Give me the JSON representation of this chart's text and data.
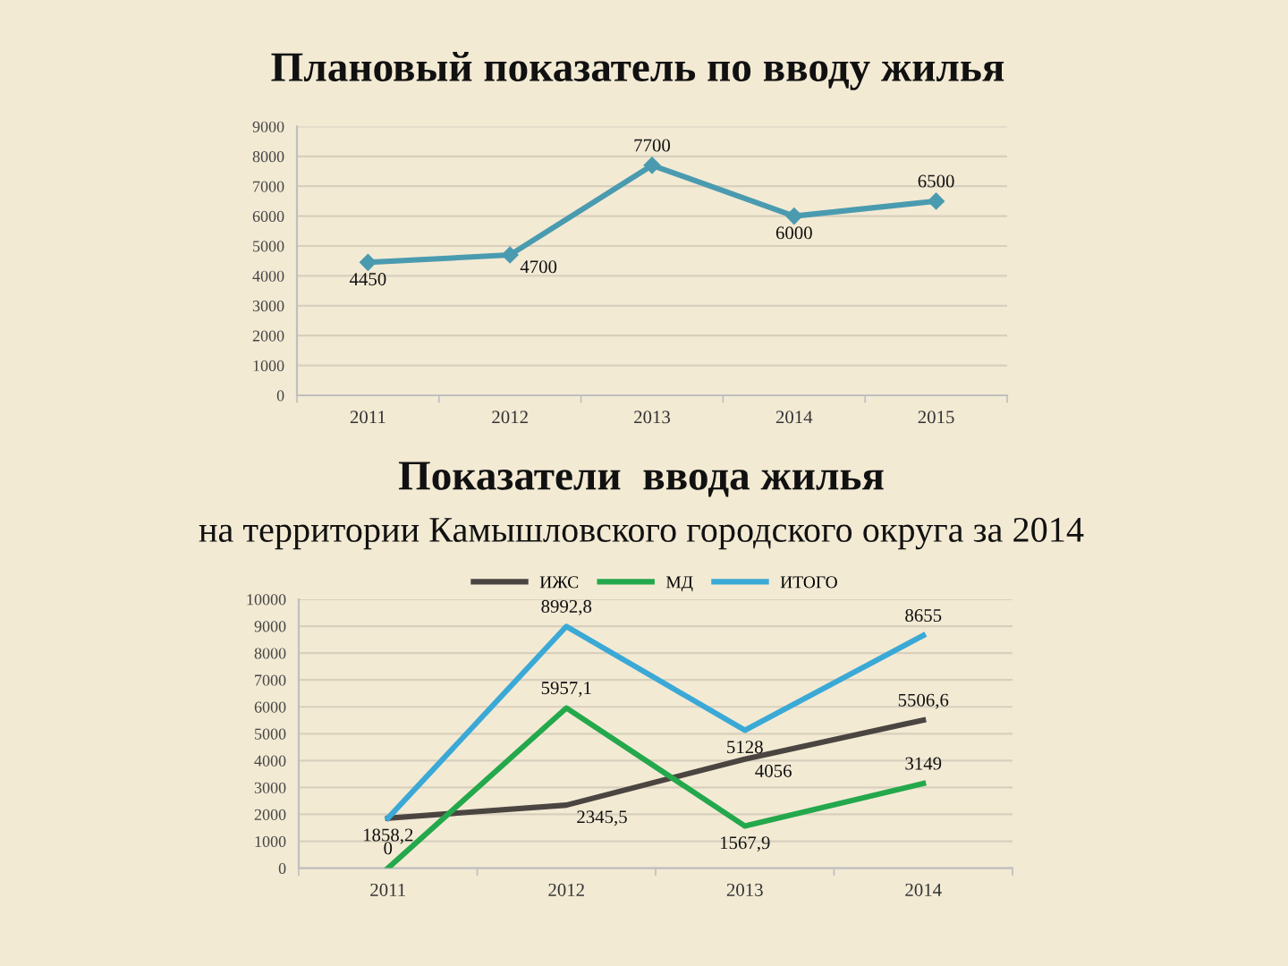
{
  "chart_data": [
    {
      "type": "line",
      "title": "Плановый показатель по вводу жилья",
      "categories": [
        "2011",
        "2012",
        "2013",
        "2014",
        "2015"
      ],
      "series": [
        {
          "color": "#4a9bb0",
          "values": [
            4450,
            4700,
            7700,
            6000,
            6500
          ]
        }
      ],
      "ylim": [
        0,
        9000
      ],
      "yticks": [
        0,
        1000,
        2000,
        3000,
        4000,
        5000,
        6000,
        7000,
        8000,
        9000
      ],
      "grid": "y",
      "marker": "diamond",
      "data_labels": true
    },
    {
      "type": "line",
      "title": "Показатели  ввода жилья",
      "subtitle": "на территории Камышловского городского округа за 2014",
      "categories": [
        "2011",
        "2012",
        "2013",
        "2014"
      ],
      "series": [
        {
          "name": "ИЖС",
          "color": "#4b4542",
          "values": [
            1858.2,
            2345.5,
            4056,
            5506.6
          ],
          "value_labels": [
            "1858,2",
            "2345,5",
            "4056",
            "5506,6"
          ]
        },
        {
          "name": "МД",
          "color": "#24a84c",
          "values": [
            0,
            5957.1,
            1567.9,
            3149
          ],
          "value_labels": [
            "0",
            "5957,1",
            "1567,9",
            "3149"
          ]
        },
        {
          "name": "ИТОГО",
          "color": "#3ba9d6",
          "values": [
            1860,
            8992.8,
            5128,
            8655
          ],
          "value_labels": [
            null,
            "8992,8",
            "5128",
            "8655"
          ]
        }
      ],
      "ylim": [
        0,
        10000
      ],
      "yticks": [
        0,
        1000,
        2000,
        3000,
        4000,
        5000,
        6000,
        7000,
        8000,
        9000,
        10000
      ],
      "grid": "y",
      "legend": "top"
    }
  ]
}
